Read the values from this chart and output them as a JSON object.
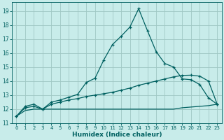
{
  "xlabel": "Humidex (Indice chaleur)",
  "bg_color": "#c8ecea",
  "line_color": "#006060",
  "grid_color": "#a0c8c4",
  "xlim": [
    -0.5,
    23.5
  ],
  "ylim": [
    11.0,
    19.6
  ],
  "yticks": [
    11,
    12,
    13,
    14,
    15,
    16,
    17,
    18,
    19
  ],
  "xticks": [
    0,
    1,
    2,
    3,
    4,
    5,
    6,
    7,
    8,
    9,
    10,
    11,
    12,
    13,
    14,
    15,
    16,
    17,
    18,
    19,
    20,
    21,
    22,
    23
  ],
  "curve1_x": [
    0,
    1,
    2,
    3,
    4,
    5,
    6,
    7,
    8,
    9,
    10,
    11,
    12,
    13,
    14,
    15,
    16,
    17,
    18,
    19,
    20,
    21,
    22,
    23
  ],
  "curve1_y": [
    11.5,
    12.2,
    12.35,
    12.0,
    12.5,
    12.65,
    12.85,
    13.05,
    13.9,
    14.2,
    15.5,
    16.6,
    17.2,
    17.85,
    19.15,
    17.6,
    16.1,
    15.25,
    15.0,
    14.15,
    14.1,
    13.75,
    12.8,
    12.35
  ],
  "curve2_x": [
    0,
    1,
    2,
    3,
    4,
    5,
    6,
    7,
    8,
    9,
    10,
    11,
    12,
    13,
    14,
    15,
    16,
    17,
    18,
    19,
    20,
    21,
    22,
    23
  ],
  "curve2_y": [
    11.5,
    12.1,
    12.2,
    12.0,
    12.35,
    12.5,
    12.65,
    12.75,
    12.9,
    13.0,
    13.1,
    13.2,
    13.35,
    13.5,
    13.7,
    13.85,
    14.0,
    14.15,
    14.3,
    14.4,
    14.42,
    14.35,
    14.0,
    12.35
  ],
  "curve3_x": [
    0,
    1,
    2,
    3,
    9,
    10,
    14,
    15,
    16,
    17,
    18,
    19,
    20,
    21,
    22,
    23
  ],
  "curve3_y": [
    11.5,
    11.9,
    12.0,
    12.0,
    12.0,
    12.0,
    12.0,
    12.0,
    12.0,
    12.0,
    12.0,
    12.1,
    12.15,
    12.2,
    12.25,
    12.35
  ],
  "marker_x1": [
    0,
    1,
    2,
    3,
    4,
    5,
    6,
    7,
    8,
    9,
    10,
    11,
    12,
    13,
    14,
    15,
    16,
    17,
    18,
    19,
    20,
    21,
    22,
    23
  ],
  "marker_y1": [
    11.5,
    12.2,
    12.35,
    12.0,
    12.5,
    12.65,
    12.85,
    13.05,
    13.9,
    14.2,
    15.5,
    16.6,
    17.2,
    17.85,
    19.15,
    17.6,
    16.1,
    15.25,
    15.0,
    14.15,
    14.1,
    13.75,
    12.8,
    12.35
  ],
  "marker_x2": [
    0,
    2,
    3,
    4,
    5,
    6,
    7,
    19,
    20,
    21,
    22,
    23
  ],
  "marker_y2": [
    11.5,
    12.2,
    12.0,
    12.35,
    12.5,
    12.65,
    12.75,
    14.4,
    14.42,
    14.35,
    14.0,
    12.35
  ]
}
